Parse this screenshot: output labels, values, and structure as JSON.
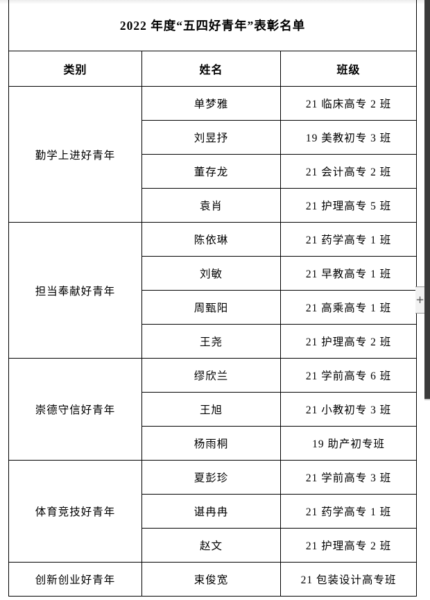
{
  "page": {
    "title": "2022 年度“五四好青年”表彰名单"
  },
  "table": {
    "headers": {
      "category": "类别",
      "name": "姓名",
      "class": "班级"
    },
    "groups": [
      {
        "category": "勤学上进好青年",
        "members": [
          {
            "name": "单梦雅",
            "class": "21 临床高专 2 班"
          },
          {
            "name": "刘昱抒",
            "class": "19 美教初专 3 班"
          },
          {
            "name": "董存龙",
            "class": "21 会计高专 2 班"
          },
          {
            "name": "袁肖",
            "class": "21 护理高专 5 班"
          }
        ]
      },
      {
        "category": "担当奉献好青年",
        "members": [
          {
            "name": "陈依琳",
            "class": "21 药学高专 1 班"
          },
          {
            "name": "刘敏",
            "class": "21 早教高专 1 班"
          },
          {
            "name": "周甄阳",
            "class": "21 高乘高专 1 班"
          },
          {
            "name": "王尧",
            "class": "21 护理高专 2 班"
          }
        ]
      },
      {
        "category": "崇德守信好青年",
        "members": [
          {
            "name": "缪欣兰",
            "class": "21 学前高专 6 班"
          },
          {
            "name": "王旭",
            "class": "21 小教初专 3 班"
          },
          {
            "name": "杨雨桐",
            "class": "19 助产初专班"
          }
        ]
      },
      {
        "category": "体育竞技好青年",
        "members": [
          {
            "name": "夏彭珍",
            "class": "21 学前高专 3 班"
          },
          {
            "name": "谌冉冉",
            "class": "21 药学高专 1 班"
          },
          {
            "name": "赵文",
            "class": "21 护理高专 2 班"
          }
        ]
      },
      {
        "category": "创新创业好青年",
        "members": [
          {
            "name": "束俊宽",
            "class": "21 包装设计高专班"
          }
        ]
      }
    ]
  },
  "scrollbar": {
    "zoom_button_label": "+"
  }
}
